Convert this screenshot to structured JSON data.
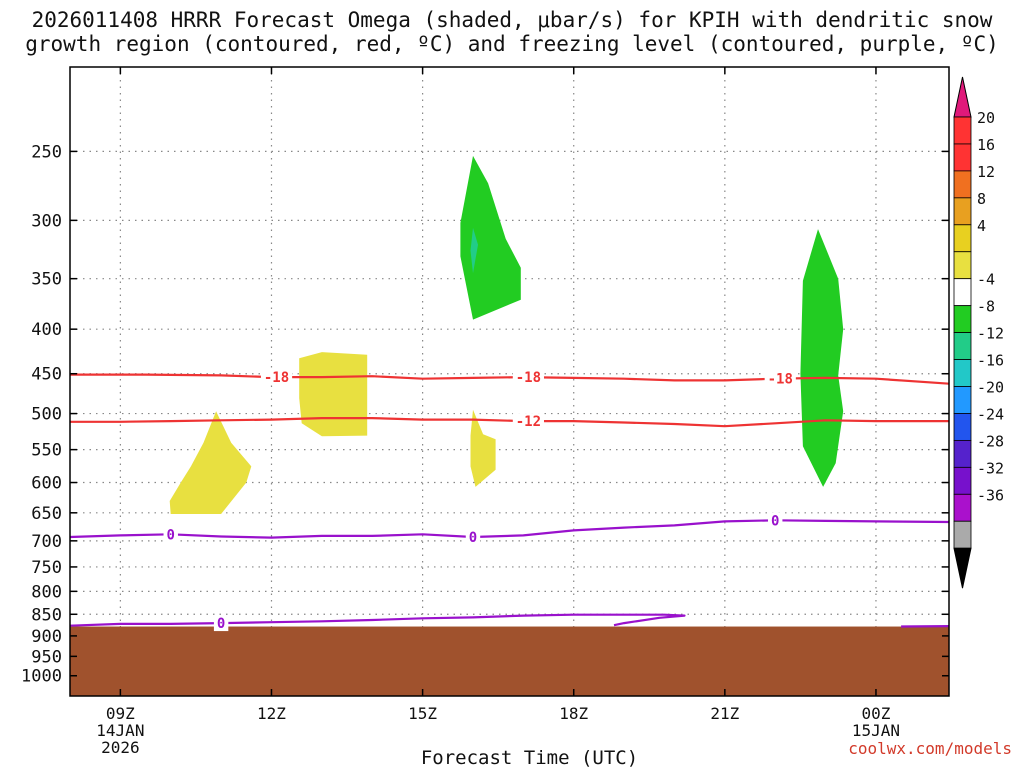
{
  "title": {
    "line1": "2026011408 HRRR Forecast Omega (shaded, μbar/s) for KPIH with dendritic snow",
    "line2": "growth region (contoured, red, ºC) and freezing level (contoured, purple, ºC)"
  },
  "credit": "coolwx.com/models",
  "chart_data": {
    "type": "contour",
    "xlabel": "Forecast Time (UTC)",
    "x_ticks": [
      {
        "value": 9,
        "lines": [
          "09Z",
          "14JAN",
          "2026"
        ]
      },
      {
        "value": 12,
        "lines": [
          "12Z"
        ]
      },
      {
        "value": 15,
        "lines": [
          "15Z"
        ]
      },
      {
        "value": 18,
        "lines": [
          "18Z"
        ]
      },
      {
        "value": 21,
        "lines": [
          "21Z"
        ]
      },
      {
        "value": 24,
        "lines": [
          "00Z",
          "15JAN"
        ]
      }
    ],
    "xlim": [
      8.0,
      25.45
    ],
    "y_axis": {
      "scale": "log",
      "reversed": true,
      "range_hpa": [
        200,
        1055
      ]
    },
    "y_ticks": [
      250,
      300,
      350,
      400,
      450,
      500,
      550,
      600,
      650,
      700,
      750,
      800,
      850,
      900,
      950,
      1000
    ],
    "grid": true,
    "colorbar": {
      "labels": [
        "20",
        "16",
        "12",
        "8",
        "4",
        "-4",
        "-8",
        "-12",
        "-16",
        "-20",
        "-24",
        "-28",
        "-32",
        "-36"
      ],
      "bins": [
        {
          "color": "#ff3333"
        },
        {
          "color": "#ff3333"
        },
        {
          "color": "#f07020"
        },
        {
          "color": "#e8a020"
        },
        {
          "color": "#e8d020"
        },
        {
          "color": "#e8e040"
        },
        {
          "color": "#ffffff"
        },
        {
          "color": "#22cc22"
        },
        {
          "color": "#22cc88"
        },
        {
          "color": "#22c8c8"
        },
        {
          "color": "#2299ff"
        },
        {
          "color": "#2255ee"
        },
        {
          "color": "#5522cc"
        },
        {
          "color": "#7711cc"
        },
        {
          "color": "#aa11cc"
        },
        {
          "color": "#aaaaaa"
        }
      ],
      "top_arrow_color": "#e0197a",
      "bottom_arrow_color": "#000000"
    },
    "surface": {
      "color": "#a0522d",
      "pressure_hpa": 878
    },
    "omega_regions": [
      {
        "range": "4 to 8",
        "color": "#e8e040",
        "points": [
          [
            10.0,
            652
          ],
          [
            9.98,
            630
          ],
          [
            10.2,
            600
          ],
          [
            10.4,
            575
          ],
          [
            10.65,
            540
          ],
          [
            10.9,
            497
          ],
          [
            11.2,
            540
          ],
          [
            11.6,
            575
          ],
          [
            11.5,
            600
          ],
          [
            11.0,
            652
          ]
        ]
      },
      {
        "range": "4 to 8",
        "color": "#e8e040",
        "points": [
          [
            12.55,
            432
          ],
          [
            13.0,
            425
          ],
          [
            13.9,
            428
          ],
          [
            13.9,
            530
          ],
          [
            13.0,
            531
          ],
          [
            12.6,
            513
          ],
          [
            12.55,
            480
          ]
        ]
      },
      {
        "range": "4 to 8",
        "color": "#e8e040",
        "points": [
          [
            15.95,
            530
          ],
          [
            16.0,
            495
          ],
          [
            16.2,
            528
          ],
          [
            16.45,
            535
          ],
          [
            16.45,
            580
          ],
          [
            16.05,
            607
          ],
          [
            15.95,
            575
          ]
        ]
      },
      {
        "range": "-4 to -8",
        "color": "#22cc22",
        "points": [
          [
            15.75,
            302
          ],
          [
            16.0,
            253
          ],
          [
            16.3,
            272
          ],
          [
            16.65,
            315
          ],
          [
            16.95,
            340
          ],
          [
            16.95,
            370
          ],
          [
            16.0,
            390
          ],
          [
            15.75,
            330
          ]
        ]
      },
      {
        "range": "-8 to -12",
        "color": "#22cc88",
        "points": [
          [
            16.0,
            306
          ],
          [
            16.1,
            320
          ],
          [
            16.0,
            345
          ],
          [
            15.95,
            325
          ]
        ]
      },
      {
        "range": "-4 to -8",
        "color": "#22cc22",
        "points": [
          [
            22.55,
            352
          ],
          [
            22.85,
            307
          ],
          [
            23.25,
            350
          ],
          [
            23.35,
            400
          ],
          [
            23.25,
            452
          ],
          [
            23.35,
            497
          ],
          [
            23.2,
            570
          ],
          [
            22.95,
            607
          ],
          [
            22.55,
            545
          ],
          [
            22.5,
            450
          ]
        ]
      }
    ],
    "dgz_contours": [
      {
        "level": -18,
        "label": "-18",
        "color": "#ee3333",
        "points": [
          [
            8.0,
            451
          ],
          [
            9.5,
            451
          ],
          [
            11.0,
            452
          ],
          [
            12.0,
            454
          ],
          [
            13.0,
            454
          ],
          [
            14.0,
            453
          ],
          [
            15.0,
            456
          ],
          [
            16.0,
            455
          ],
          [
            17.0,
            454
          ],
          [
            18.0,
            455
          ],
          [
            19.0,
            456
          ],
          [
            20.0,
            458
          ],
          [
            21.0,
            458
          ],
          [
            22.0,
            456
          ],
          [
            23.0,
            455
          ],
          [
            24.0,
            456
          ],
          [
            25.45,
            462
          ]
        ],
        "labels_at": [
          12.1,
          17.1,
          22.1
        ]
      },
      {
        "level": -12,
        "label": "-12",
        "color": "#ee3333",
        "points": [
          [
            8.0,
            511
          ],
          [
            9.0,
            511
          ],
          [
            10.0,
            510
          ],
          [
            11.0,
            509
          ],
          [
            12.0,
            508
          ],
          [
            13.0,
            506
          ],
          [
            14.0,
            506
          ],
          [
            15.0,
            508
          ],
          [
            16.0,
            508
          ],
          [
            17.0,
            510
          ],
          [
            18.0,
            510
          ],
          [
            19.0,
            512
          ],
          [
            20.0,
            514
          ],
          [
            21.0,
            517
          ],
          [
            22.0,
            513
          ],
          [
            23.0,
            509
          ],
          [
            24.0,
            510
          ],
          [
            25.45,
            510
          ]
        ],
        "labels_at": [
          17.1
        ]
      }
    ],
    "freezing_contours": [
      {
        "level": 0,
        "label": "0",
        "color": "#9911cc",
        "points": [
          [
            8.0,
            693
          ],
          [
            9.0,
            690
          ],
          [
            10.0,
            688
          ],
          [
            11.0,
            692
          ],
          [
            12.0,
            694
          ],
          [
            13.0,
            691
          ],
          [
            14.0,
            691
          ],
          [
            15.0,
            688
          ],
          [
            16.0,
            693
          ],
          [
            17.0,
            690
          ],
          [
            18.0,
            681
          ],
          [
            19.0,
            676
          ],
          [
            20.0,
            672
          ],
          [
            21.0,
            665
          ],
          [
            22.0,
            663
          ],
          [
            23.0,
            664
          ],
          [
            24.0,
            665
          ],
          [
            25.45,
            666
          ]
        ],
        "labels_at": [
          10.0,
          16.0,
          22.0
        ]
      },
      {
        "level": 0,
        "label": "0",
        "color": "#9911cc",
        "points": [
          [
            8.0,
            876
          ],
          [
            9.0,
            872
          ],
          [
            10.0,
            872
          ],
          [
            11.0,
            870
          ],
          [
            12.0,
            868
          ],
          [
            13.0,
            866
          ],
          [
            14.0,
            863
          ],
          [
            15.0,
            859
          ],
          [
            16.0,
            857
          ],
          [
            17.0,
            853
          ],
          [
            18.0,
            851
          ],
          [
            19.0,
            851
          ],
          [
            19.8,
            851
          ],
          [
            20.2,
            853
          ],
          [
            19.7,
            858
          ],
          [
            19.0,
            870
          ],
          [
            18.8,
            875
          ]
        ],
        "labels_at": [
          11.0
        ]
      },
      {
        "level": 0,
        "label": "",
        "color": "#9911cc",
        "points": [
          [
            24.5,
            878
          ],
          [
            25.45,
            877
          ]
        ],
        "labels_at": []
      }
    ]
  }
}
